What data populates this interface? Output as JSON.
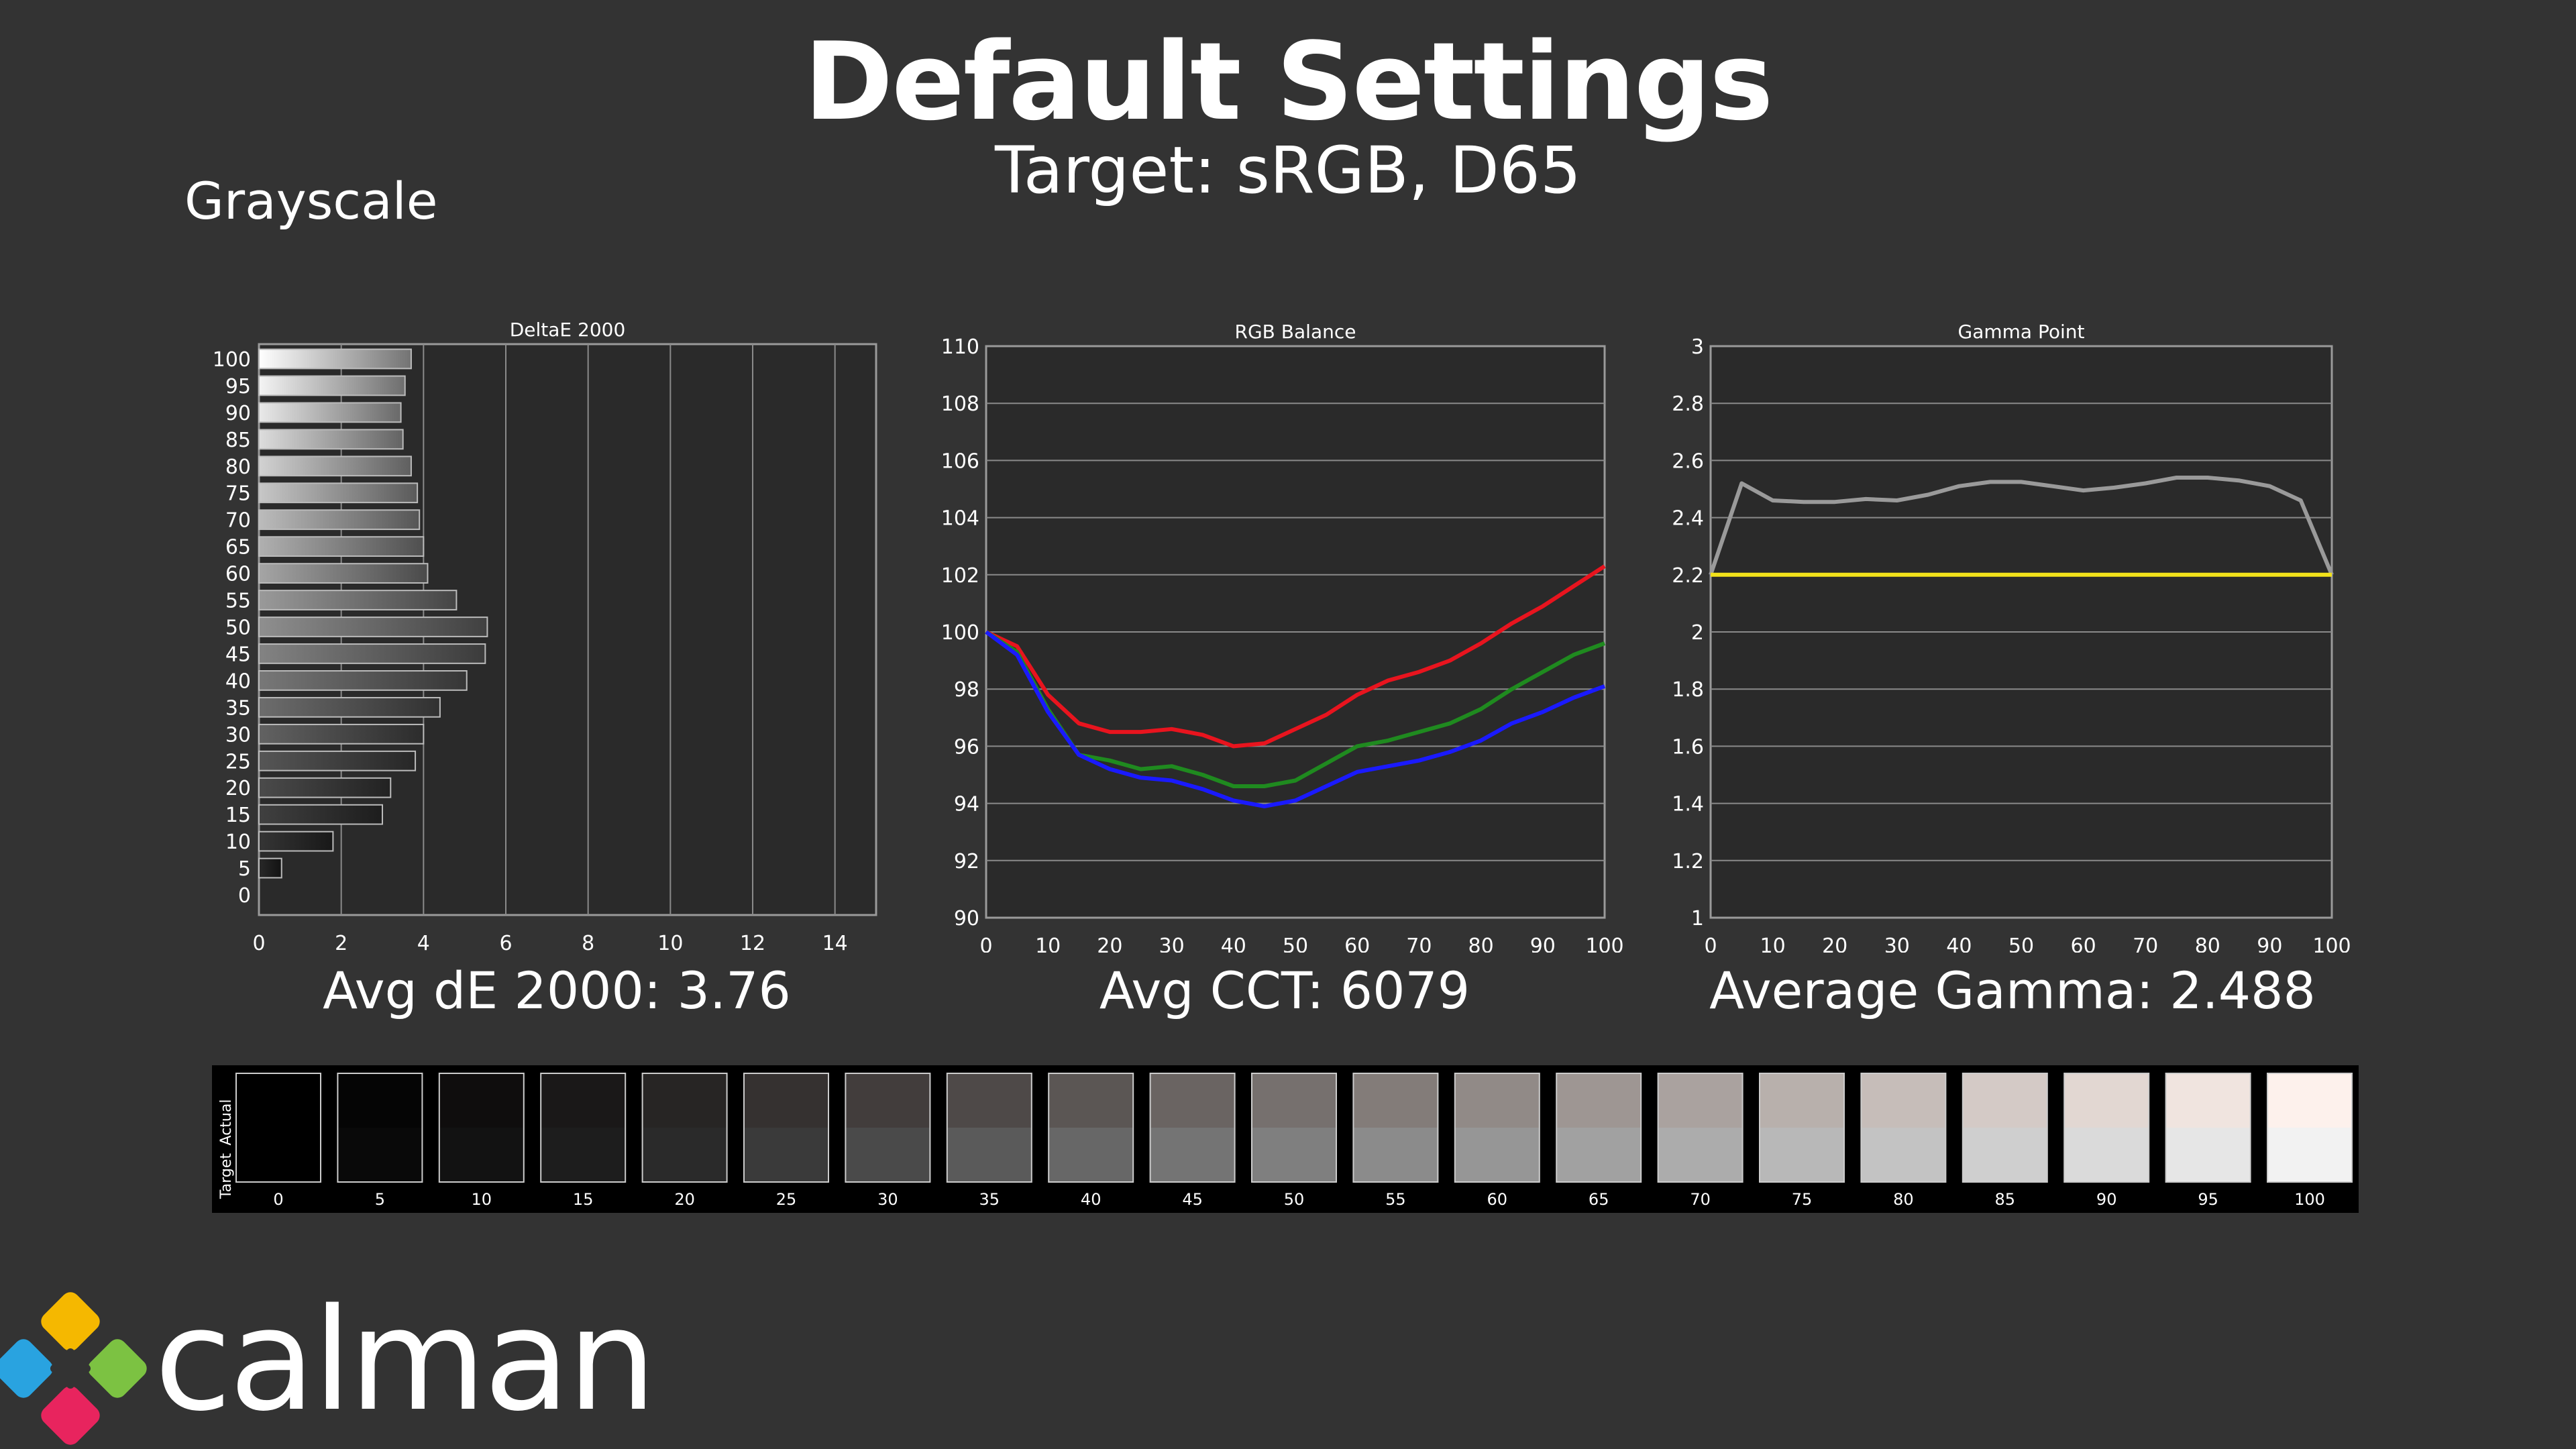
{
  "header": {
    "title": "Default Settings",
    "subtitle": "Target: sRGB, D65"
  },
  "section_label": "Grayscale",
  "stats": {
    "avg_de": "Avg dE 2000: 3.76",
    "avg_cct": "Avg CCT: 6079",
    "avg_gamma": "Average Gamma: 2.488"
  },
  "colors": {
    "red": "#e8141e",
    "green": "#1f8a1f",
    "blue": "#1a1aff",
    "gamma_target": "#f2e21a",
    "gamma_actual": "#9a9a9a"
  },
  "chart_data": [
    {
      "type": "bar",
      "title": "DeltaE 2000",
      "orientation": "horizontal",
      "categories": [
        "0",
        "5",
        "10",
        "15",
        "20",
        "25",
        "30",
        "35",
        "40",
        "45",
        "50",
        "55",
        "60",
        "65",
        "70",
        "75",
        "80",
        "85",
        "90",
        "95",
        "100"
      ],
      "values": [
        0,
        0.55,
        1.8,
        3.0,
        3.2,
        3.8,
        4.0,
        4.4,
        5.05,
        5.5,
        5.55,
        4.8,
        4.1,
        4.0,
        3.9,
        3.85,
        3.7,
        3.5,
        3.45,
        3.55,
        3.7
      ],
      "xlim": [
        0,
        15
      ],
      "x_ticks": [
        "0",
        "2",
        "4",
        "6",
        "8",
        "10",
        "12",
        "14"
      ]
    },
    {
      "type": "line",
      "title": "RGB Balance",
      "x": [
        0,
        5,
        10,
        15,
        20,
        25,
        30,
        35,
        40,
        45,
        50,
        55,
        60,
        65,
        70,
        75,
        80,
        85,
        90,
        95,
        100
      ],
      "series": [
        {
          "color": "red",
          "values": [
            100,
            99.5,
            97.8,
            96.8,
            96.5,
            96.5,
            96.6,
            96.4,
            96.0,
            96.1,
            96.6,
            97.1,
            97.8,
            98.3,
            98.6,
            99.0,
            99.6,
            100.3,
            100.9,
            101.6,
            102.3
          ]
        },
        {
          "color": "green",
          "values": [
            100,
            99.3,
            97.3,
            95.7,
            95.5,
            95.2,
            95.3,
            95.0,
            94.6,
            94.6,
            94.8,
            95.4,
            96.0,
            96.2,
            96.5,
            96.8,
            97.3,
            98.0,
            98.6,
            99.2,
            99.6
          ]
        },
        {
          "color": "blue",
          "values": [
            100,
            99.2,
            97.2,
            95.7,
            95.2,
            94.9,
            94.8,
            94.5,
            94.1,
            93.9,
            94.1,
            94.6,
            95.1,
            95.3,
            95.5,
            95.8,
            96.2,
            96.8,
            97.2,
            97.7,
            98.1
          ]
        }
      ],
      "ylim": [
        90,
        110
      ],
      "y_ticks": [
        "90",
        "92",
        "94",
        "96",
        "98",
        "100",
        "102",
        "104",
        "106",
        "108",
        "110"
      ],
      "x_ticks": [
        "0",
        "10",
        "20",
        "30",
        "40",
        "50",
        "60",
        "70",
        "80",
        "90",
        "100"
      ]
    },
    {
      "type": "line",
      "title": "Gamma Point",
      "x": [
        0,
        5,
        10,
        15,
        20,
        25,
        30,
        35,
        40,
        45,
        50,
        55,
        60,
        65,
        70,
        75,
        80,
        85,
        90,
        95,
        100
      ],
      "series": [
        {
          "color": "gamma_actual",
          "values": [
            2.2,
            2.52,
            2.46,
            2.455,
            2.455,
            2.465,
            2.46,
            2.48,
            2.51,
            2.525,
            2.525,
            2.51,
            2.495,
            2.505,
            2.52,
            2.54,
            2.54,
            2.53,
            2.51,
            2.46,
            2.2
          ]
        },
        {
          "color": "gamma_target",
          "values": [
            2.2,
            2.2,
            2.2,
            2.2,
            2.2,
            2.2,
            2.2,
            2.2,
            2.2,
            2.2,
            2.2,
            2.2,
            2.2,
            2.2,
            2.2,
            2.2,
            2.2,
            2.2,
            2.2,
            2.2,
            2.2
          ]
        }
      ],
      "ylim": [
        1,
        3
      ],
      "y_ticks": [
        "1",
        "1.2",
        "1.4",
        "1.6",
        "1.8",
        "2",
        "2.2",
        "2.4",
        "2.6",
        "2.8",
        "3"
      ],
      "x_ticks": [
        "0",
        "10",
        "20",
        "30",
        "40",
        "50",
        "60",
        "70",
        "80",
        "90",
        "100"
      ]
    }
  ],
  "swatches": {
    "actual_label": "Actual",
    "target_label": "Target",
    "items": [
      {
        "label": "0",
        "actual": "#000000",
        "target": "#000000"
      },
      {
        "label": "5",
        "actual": "#050505",
        "target": "#090909"
      },
      {
        "label": "10",
        "actual": "#0f0d0d",
        "target": "#121212"
      },
      {
        "label": "15",
        "actual": "#1a1818",
        "target": "#1d1d1d"
      },
      {
        "label": "20",
        "actual": "#272524",
        "target": "#2a2a2a"
      },
      {
        "label": "25",
        "actual": "#353130",
        "target": "#3a3a3a"
      },
      {
        "label": "30",
        "actual": "#423d3c",
        "target": "#4a4a4a"
      },
      {
        "label": "35",
        "actual": "#4e4948",
        "target": "#5a5a5a"
      },
      {
        "label": "40",
        "actual": "#5b5654",
        "target": "#676767"
      },
      {
        "label": "45",
        "actual": "#6a6462",
        "target": "#747474"
      },
      {
        "label": "50",
        "actual": "#76706e",
        "target": "#7f7f7f"
      },
      {
        "label": "55",
        "actual": "#837c79",
        "target": "#8b8b8b"
      },
      {
        "label": "60",
        "actual": "#918a87",
        "target": "#969696"
      },
      {
        "label": "65",
        "actual": "#9e9693",
        "target": "#a1a1a1"
      },
      {
        "label": "70",
        "actual": "#aaa29f",
        "target": "#acacac"
      },
      {
        "label": "75",
        "actual": "#b8b0ac",
        "target": "#b8b8b8"
      },
      {
        "label": "80",
        "actual": "#c6bdb9",
        "target": "#c3c3c3"
      },
      {
        "label": "85",
        "actual": "#d4cac6",
        "target": "#cfcfcf"
      },
      {
        "label": "90",
        "actual": "#e2d7d2",
        "target": "#dadada"
      },
      {
        "label": "95",
        "actual": "#f0e4df",
        "target": "#e6e6e6"
      },
      {
        "label": "100",
        "actual": "#fdf1ec",
        "target": "#f2f2f2"
      }
    ]
  },
  "brand": {
    "name": "calman"
  }
}
